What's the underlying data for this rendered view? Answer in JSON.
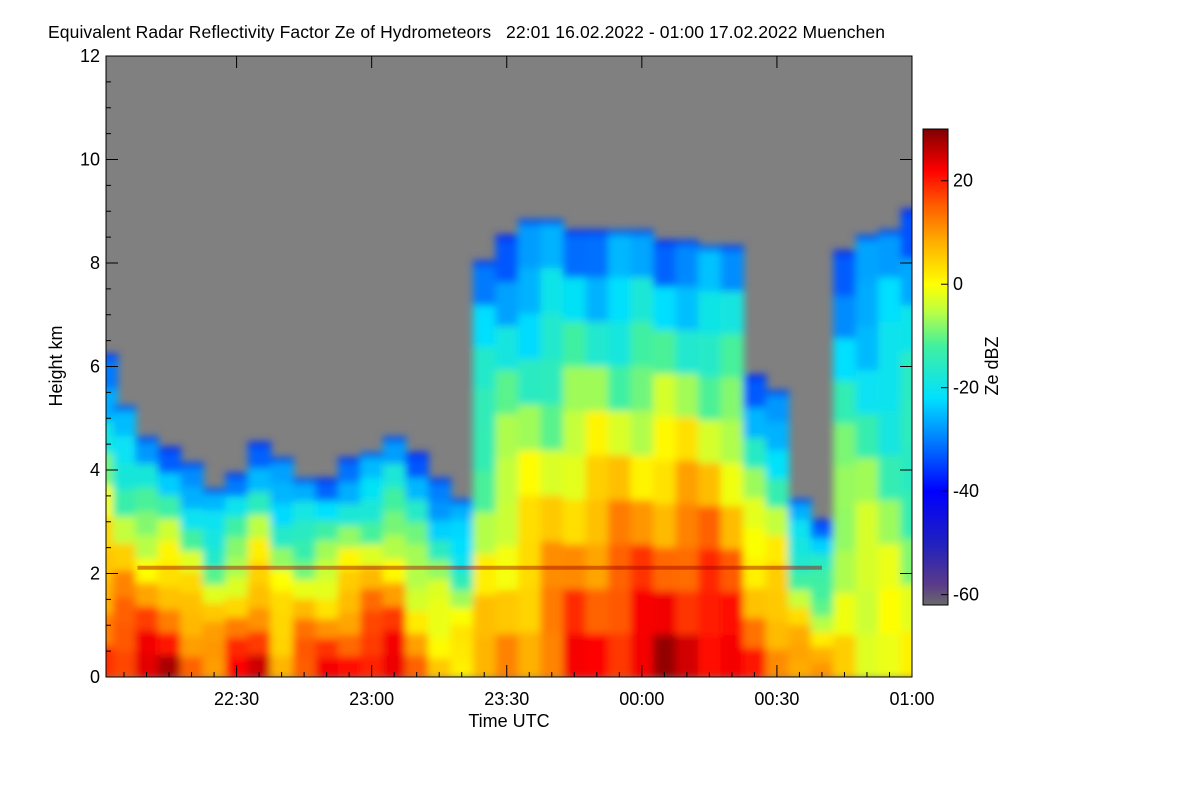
{
  "chart_data": {
    "type": "heatmap",
    "title": "Equivalent Radar Reflectivity Factor Ze of Hydrometeors   22:01 16.02.2022 - 01:00 17.02.2022 Muenchen",
    "xlabel": "Time UTC",
    "ylabel": "Height km",
    "colorbar_label": "Ze dBZ",
    "x_range_minutes_since_2200": [
      1,
      180
    ],
    "x_ticks": [
      {
        "minute": 30,
        "label": "22:30"
      },
      {
        "minute": 60,
        "label": "23:00"
      },
      {
        "minute": 90,
        "label": "23:30"
      },
      {
        "minute": 120,
        "label": "00:00"
      },
      {
        "minute": 150,
        "label": "00:30"
      },
      {
        "minute": 180,
        "label": "01:00"
      }
    ],
    "ylim": [
      0,
      12
    ],
    "y_ticks": [
      0,
      2,
      4,
      6,
      8,
      10,
      12
    ],
    "colorbar_range": [
      -62,
      30
    ],
    "colorbar_ticks": [
      20,
      0,
      -20,
      -40,
      -60
    ],
    "colorbar_tick_labels": [
      "20",
      "0",
      "-20",
      "-40",
      "-60"
    ],
    "background_color": "#808080",
    "colormap_stops": [
      {
        "value": -62,
        "color": "#6a6a6a"
      },
      {
        "value": -58,
        "color": "#5a3a8a"
      },
      {
        "value": -50,
        "color": "#2020c0"
      },
      {
        "value": -40,
        "color": "#0000ff"
      },
      {
        "value": -30,
        "color": "#0080ff"
      },
      {
        "value": -22,
        "color": "#00e0ff"
      },
      {
        "value": -12,
        "color": "#40f0a0"
      },
      {
        "value": -5,
        "color": "#c0ff40"
      },
      {
        "value": 0,
        "color": "#ffff00"
      },
      {
        "value": 8,
        "color": "#ffb000"
      },
      {
        "value": 15,
        "color": "#ff6000"
      },
      {
        "value": 22,
        "color": "#ff0000"
      },
      {
        "value": 30,
        "color": "#800000"
      }
    ],
    "cloud_columns_minute_topkm_peakdbz": [
      [
        1,
        6.2,
        20
      ],
      [
        5,
        5.2,
        22
      ],
      [
        10,
        4.6,
        24
      ],
      [
        15,
        4.4,
        25
      ],
      [
        20,
        4.1,
        18
      ],
      [
        25,
        3.6,
        14
      ],
      [
        30,
        3.9,
        20
      ],
      [
        35,
        4.5,
        24
      ],
      [
        40,
        4.2,
        12
      ],
      [
        45,
        3.8,
        18
      ],
      [
        50,
        3.8,
        20
      ],
      [
        55,
        4.2,
        22
      ],
      [
        60,
        4.3,
        25
      ],
      [
        65,
        4.6,
        24
      ],
      [
        70,
        4.3,
        12
      ],
      [
        75,
        3.8,
        8
      ],
      [
        80,
        3.4,
        6
      ],
      [
        85,
        8.0,
        6
      ],
      [
        90,
        8.5,
        10
      ],
      [
        95,
        8.8,
        12
      ],
      [
        100,
        8.8,
        15
      ],
      [
        105,
        8.6,
        20
      ],
      [
        110,
        8.6,
        22
      ],
      [
        115,
        8.6,
        23
      ],
      [
        120,
        8.6,
        24
      ],
      [
        125,
        8.4,
        26
      ],
      [
        130,
        8.4,
        27
      ],
      [
        135,
        8.3,
        26
      ],
      [
        140,
        8.3,
        22
      ],
      [
        145,
        5.8,
        18
      ],
      [
        150,
        5.5,
        15
      ],
      [
        155,
        3.4,
        12
      ],
      [
        160,
        3.0,
        8
      ],
      [
        165,
        8.2,
        4
      ],
      [
        170,
        8.5,
        2
      ],
      [
        175,
        8.6,
        0
      ],
      [
        180,
        9.0,
        -2
      ]
    ],
    "bright_band_km": 2.1
  }
}
